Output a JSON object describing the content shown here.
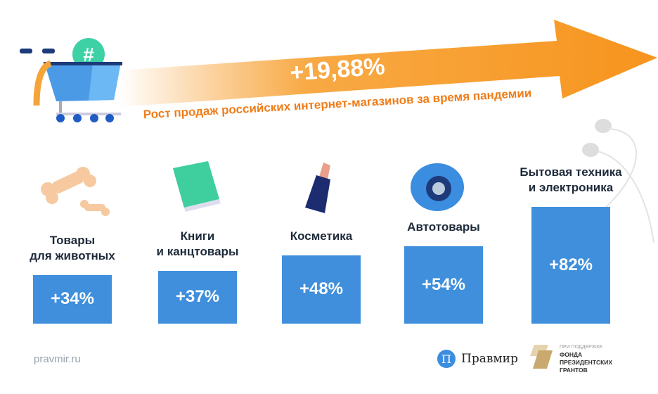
{
  "headline": "+19,88%",
  "subtitle": "Рост продаж российских интернет-магазинов за время пандемии",
  "colors": {
    "bar": "#3f8fdc",
    "accent": "#f7941d"
  },
  "chart_data": {
    "type": "bar",
    "title": "Рост продаж российских интернет-магазинов за время пандемии",
    "categories": [
      "Товары для животных",
      "Книги и канцтовары",
      "Косметика",
      "Автотовары",
      "Бытовая техника и электроника"
    ],
    "category_lines": [
      [
        "Товары",
        "для животных"
      ],
      [
        "Книги",
        "и канцтовары"
      ],
      [
        "Косметика"
      ],
      [
        "Автотовары"
      ],
      [
        "Бытовая техника",
        "и электроника"
      ]
    ],
    "values": [
      34,
      37,
      48,
      54,
      82
    ],
    "labels": [
      "+34%",
      "+37%",
      "+48%",
      "+54%",
      "+82%"
    ],
    "unit": "%"
  },
  "footer": {
    "site": "pravmir.ru",
    "logo": "Правмир",
    "logo_letter": "П",
    "grant_lines": [
      "ПРИ ПОДДЕРЖКЕ",
      "ФОНДА",
      "ПРЕЗИДЕНТСКИХ",
      "ГРАНТОВ"
    ]
  }
}
